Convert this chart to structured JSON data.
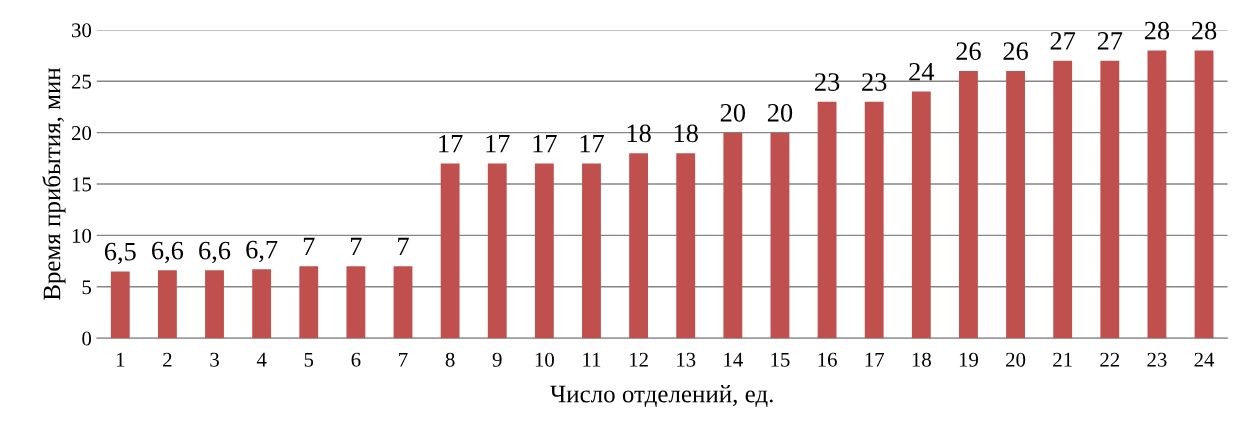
{
  "chart_data": {
    "type": "bar",
    "xlabel": "Число отделений, ед.",
    "ylabel": "Время прибытия, мин",
    "categories": [
      "1",
      "2",
      "3",
      "4",
      "5",
      "6",
      "7",
      "8",
      "9",
      "10",
      "11",
      "12",
      "13",
      "14",
      "15",
      "16",
      "17",
      "18",
      "19",
      "20",
      "21",
      "22",
      "23",
      "24"
    ],
    "values": [
      6.5,
      6.6,
      6.6,
      6.7,
      7,
      7,
      7,
      17,
      17,
      17,
      17,
      18,
      18,
      20,
      20,
      23,
      23,
      24,
      26,
      26,
      27,
      27,
      28,
      28
    ],
    "value_labels": [
      "6,5",
      "6,6",
      "6,6",
      "6,7",
      "7",
      "7",
      "7",
      "17",
      "17",
      "17",
      "17",
      "18",
      "18",
      "20",
      "20",
      "23",
      "23",
      "24",
      "26",
      "26",
      "27",
      "27",
      "28",
      "28"
    ],
    "color": "#c0504d",
    "ylim": [
      0,
      30
    ],
    "yticks": [
      0,
      5,
      10,
      15,
      20,
      25,
      30
    ],
    "grid": "y",
    "legend": false
  }
}
